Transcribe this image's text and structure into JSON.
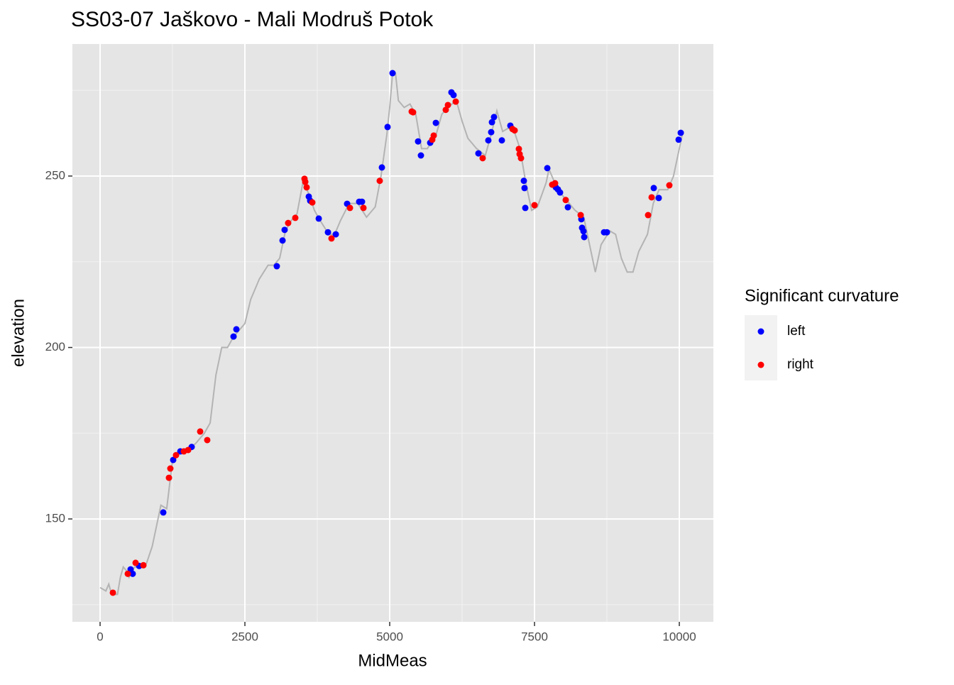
{
  "chart_data": {
    "type": "line",
    "title": "SS03-07 Jaškovo - Mali Modruš Potok",
    "x_label": "MidMeas",
    "y_label": "elevation",
    "legend_title": "Significant curvature",
    "legend": "right",
    "xlim": [
      -478,
      10588
    ],
    "ylim": [
      120,
      288.5
    ],
    "xticks": [
      0,
      2500,
      5000,
      7500,
      10000
    ],
    "yticks": [
      150,
      200,
      250
    ],
    "x_minor_grid": [
      1250,
      3750,
      6250,
      8750
    ],
    "y_minor_grid": [
      125,
      175,
      225,
      275
    ],
    "grid": true,
    "line": {
      "color": "#b3b3b3",
      "x": [
        0,
        100,
        150,
        200,
        300,
        350,
        400,
        450,
        500,
        550,
        600,
        700,
        800,
        900,
        1000,
        1050,
        1150,
        1200,
        1250,
        1350,
        1500,
        1650,
        1800,
        1900,
        2000,
        2100,
        2200,
        2300,
        2400,
        2500,
        2600,
        2750,
        2900,
        3000,
        3100,
        3200,
        3300,
        3400,
        3500,
        3600,
        3700,
        3800,
        3950,
        4050,
        4150,
        4300,
        4450,
        4600,
        4750,
        4850,
        4950,
        5000,
        5050,
        5100,
        5150,
        5250,
        5350,
        5450,
        5550,
        5650,
        5800,
        5900,
        6000,
        6150,
        6250,
        6350,
        6500,
        6650,
        6750,
        6850,
        6950,
        7050,
        7150,
        7250,
        7350,
        7450,
        7550,
        7700,
        7750,
        7850,
        7950,
        8050,
        8200,
        8350,
        8450,
        8550,
        8650,
        8800,
        8900,
        9000,
        9100,
        9200,
        9300,
        9450,
        9550,
        9650,
        9800,
        9900,
        10000,
        10050
      ],
      "values": [
        130,
        129,
        131,
        128,
        128,
        133,
        136,
        135,
        133,
        135,
        136,
        136,
        137,
        142,
        150,
        154,
        153,
        160,
        167,
        169,
        170,
        172,
        175,
        178,
        192,
        200,
        200,
        203,
        205,
        207,
        214,
        220,
        224,
        224,
        226,
        234,
        237,
        239,
        248,
        245,
        240,
        237,
        233,
        233,
        237,
        242,
        242,
        238,
        241,
        250,
        262,
        270,
        280,
        280,
        272,
        270,
        271,
        268,
        258,
        258,
        262,
        268,
        270,
        272,
        266,
        261,
        258,
        256,
        262,
        269,
        263,
        264,
        263,
        258,
        248,
        240,
        241,
        248,
        252,
        248,
        245,
        243,
        240,
        238,
        230,
        222,
        230,
        234,
        233,
        226,
        222,
        222,
        228,
        233,
        242,
        246,
        246,
        250,
        258,
        262
      ]
    },
    "series_type": "scatter",
    "series": [
      {
        "name": "left",
        "color": "#0000ff",
        "x": [
          527,
          563,
          674,
          1091,
          1262,
          1385,
          1581,
          2304,
          2353,
          3051,
          3150,
          3186,
          3603,
          3627,
          3775,
          3934,
          4069,
          4265,
          4473,
          4522,
          4865,
          4963,
          5049,
          5490,
          5539,
          5699,
          5797,
          6066,
          6103,
          6532,
          6703,
          6752,
          6765,
          6801,
          6936,
          7083,
          7316,
          7328,
          7341,
          7721,
          7868,
          7904,
          7941,
          8076,
          8309,
          8321,
          8346,
          8358,
          8701,
          8750,
          9559,
          9645,
          9988,
          10025
        ],
        "values": [
          135.3,
          134,
          136.3,
          151.9,
          167.2,
          169.7,
          171,
          203.2,
          205.3,
          223.7,
          231.2,
          234.3,
          244,
          242.8,
          237.6,
          233.6,
          233,
          241.9,
          242.5,
          242.5,
          252.5,
          264.3,
          280,
          260.1,
          256,
          259.7,
          265.5,
          274.4,
          273.6,
          256.6,
          260.4,
          262.8,
          265.7,
          267.2,
          260.4,
          264.7,
          248.6,
          246.5,
          240.7,
          252.3,
          246.7,
          246.1,
          245.2,
          240.9,
          237.4,
          234.9,
          233.9,
          232.2,
          233.6,
          233.6,
          246.5,
          243.6,
          260.6,
          262.6
        ]
      },
      {
        "name": "right",
        "color": "#ff0000",
        "x": [
          221,
          478,
          613,
          748,
          1189,
          1213,
          1311,
          1446,
          1520,
          1728,
          1850,
          3247,
          3370,
          3529,
          3542,
          3566,
          3664,
          3995,
          4314,
          4547,
          4828,
          5380,
          5404,
          5735,
          5760,
          5968,
          6005,
          6140,
          6605,
          7120,
          7157,
          7230,
          7243,
          7267,
          7500,
          7806,
          7855,
          8039,
          8297,
          9461,
          9522,
          9828
        ],
        "values": [
          128.5,
          134,
          137.2,
          136.5,
          162,
          164.7,
          168.6,
          169.7,
          170.1,
          175.5,
          173,
          236.3,
          237.8,
          249.2,
          248.3,
          246.7,
          242.3,
          231.8,
          240.7,
          240.7,
          248.6,
          268.8,
          268.6,
          260.6,
          261.8,
          269.3,
          270.7,
          271.7,
          255.2,
          263.7,
          263.3,
          257.9,
          256.4,
          255.2,
          241.5,
          247.5,
          247.9,
          243,
          238.6,
          238.6,
          243.8,
          247.3
        ]
      }
    ]
  }
}
